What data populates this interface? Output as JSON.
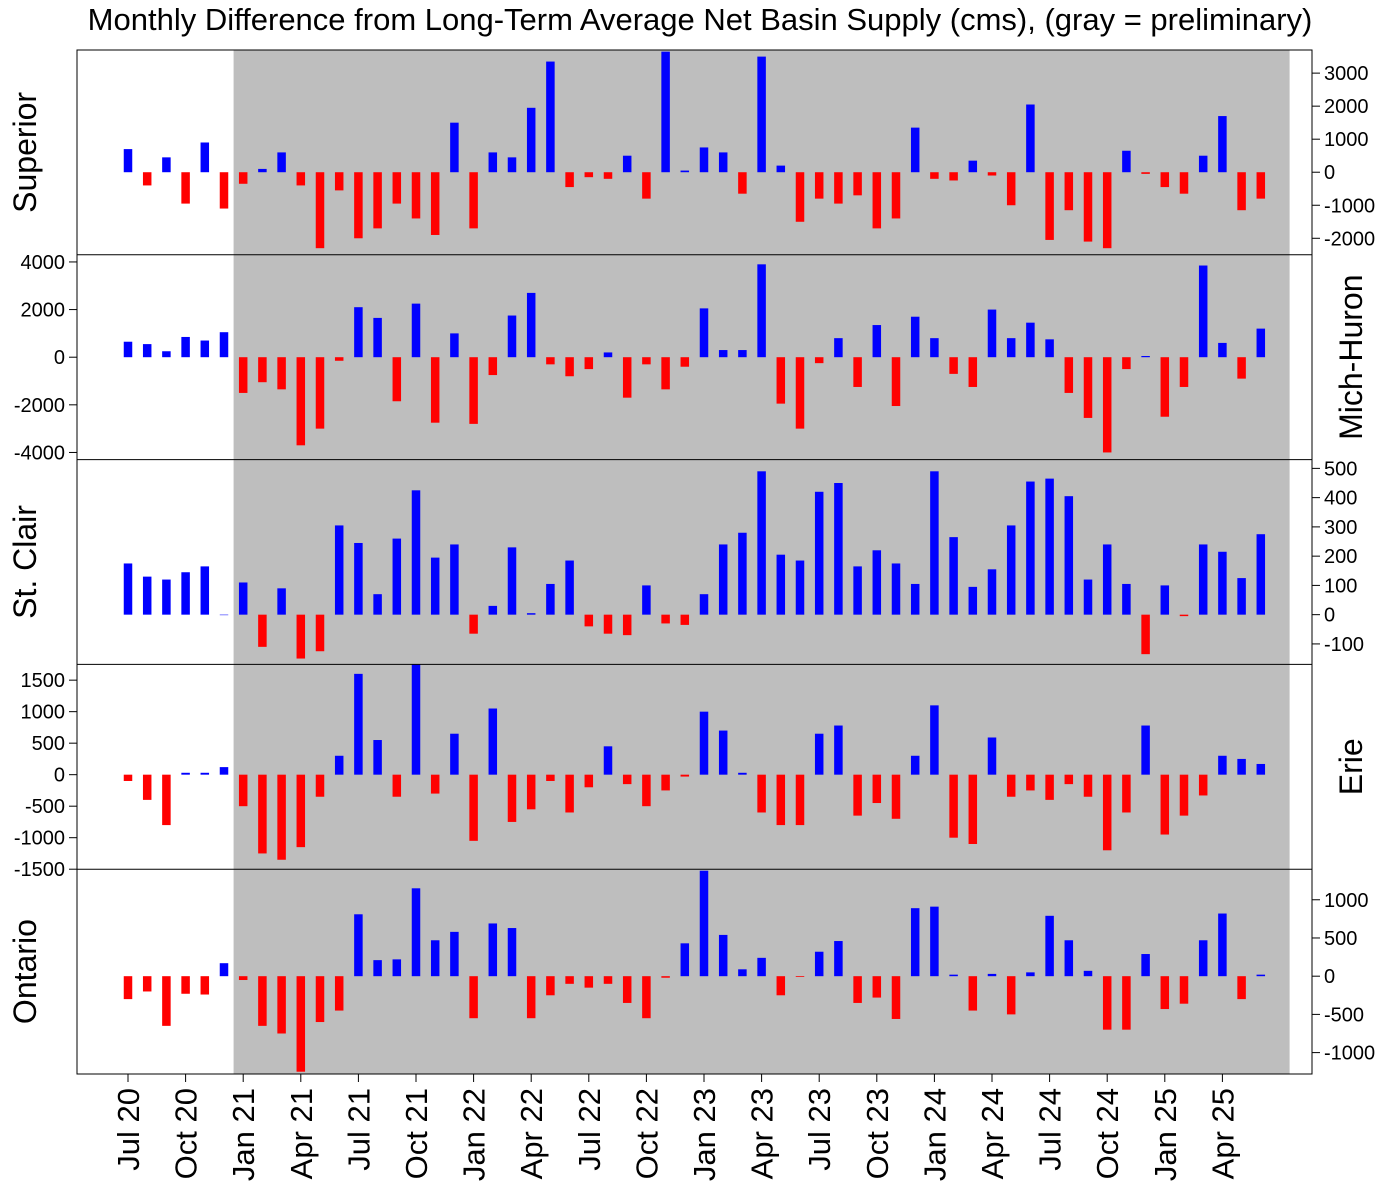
{
  "title": "Monthly Difference from Long-Term Average Net Basin Supply (cms), (gray = preliminary)",
  "chart_data": {
    "type": "bar",
    "x_start": "Jul 20",
    "months": 60,
    "x_ticks": [
      "Jul 20",
      "Oct 20",
      "Jan 21",
      "Apr 21",
      "Jul 21",
      "Oct 21",
      "Jan 22",
      "Apr 22",
      "Jul 22",
      "Oct 22",
      "Jan 23",
      "Apr 23",
      "Jul 23",
      "Oct 23",
      "Jan 24",
      "Apr 24",
      "Jul 24",
      "Oct 24",
      "Jan 25",
      "Apr 25"
    ],
    "preliminary_start": "Jan 21",
    "preliminary_end": "Jul 25",
    "preliminary_color": "#bebebe",
    "positive_color": "#0000ff",
    "negative_color": "#ff0000",
    "panels": [
      {
        "name": "Superior",
        "label_side": "left",
        "axis_side": "right",
        "ylim": [
          -2500,
          3700
        ],
        "ticks": [
          -2000,
          -1000,
          0,
          1000,
          2000,
          3000
        ],
        "values": [
          700,
          -400,
          450,
          -950,
          900,
          -1100,
          -350,
          100,
          600,
          -400,
          -2300,
          -550,
          -2000,
          -1700,
          -950,
          -1400,
          -1900,
          1500,
          -1700,
          600,
          450,
          1950,
          3350,
          -450,
          -150,
          -200,
          500,
          -800,
          3650,
          50,
          750,
          600,
          -650,
          3500,
          200,
          -1500,
          -800,
          -950,
          -700,
          -1700,
          -1400,
          1350,
          -200,
          -250,
          350,
          -100,
          -1000,
          2050,
          -2050,
          -1150,
          -2100,
          -2300,
          650,
          -50,
          -450,
          -650,
          500,
          1700,
          -1150,
          -800
        ]
      },
      {
        "name": "Mich-Huron",
        "label_side": "right",
        "axis_side": "left",
        "ylim": [
          -4300,
          4300
        ],
        "ticks": [
          -4000,
          -2000,
          0,
          2000,
          4000
        ],
        "values": [
          650,
          550,
          250,
          850,
          700,
          1050,
          -1500,
          -1050,
          -1350,
          -3700,
          -3000,
          -150,
          2100,
          1650,
          -1850,
          2250,
          -2750,
          1000,
          -2800,
          -750,
          1750,
          2700,
          -300,
          -800,
          -500,
          200,
          -1700,
          -300,
          -1350,
          -400,
          2050,
          300,
          300,
          3900,
          -1950,
          -3000,
          -250,
          800,
          -1250,
          1350,
          -2050,
          1700,
          800,
          -700,
          -1250,
          2000,
          800,
          1450,
          750,
          -1500,
          -2550,
          -4000,
          -500,
          50,
          -2500,
          -1250,
          3850,
          600,
          -900,
          1200
        ]
      },
      {
        "name": "St. Clair",
        "label_side": "left",
        "axis_side": "right",
        "ylim": [
          -170,
          530
        ],
        "ticks": [
          -100,
          0,
          100,
          200,
          300,
          400,
          500
        ],
        "values": [
          175,
          130,
          120,
          145,
          165,
          0,
          110,
          -110,
          90,
          -150,
          -125,
          305,
          245,
          70,
          260,
          425,
          195,
          240,
          -65,
          30,
          230,
          5,
          105,
          185,
          -40,
          -65,
          -70,
          100,
          -30,
          -35,
          70,
          240,
          280,
          490,
          205,
          185,
          420,
          450,
          165,
          220,
          175,
          105,
          490,
          265,
          95,
          155,
          305,
          455,
          465,
          405,
          120,
          240,
          105,
          -135,
          100,
          -5,
          240,
          215,
          125,
          275
        ]
      },
      {
        "name": "Erie",
        "label_side": "right",
        "axis_side": "left",
        "ylim": [
          -1500,
          1750
        ],
        "ticks": [
          -1500,
          -1000,
          -500,
          0,
          500,
          1000,
          1500
        ],
        "values": [
          -100,
          -400,
          -800,
          30,
          30,
          120,
          -500,
          -1250,
          -1350,
          -1150,
          -350,
          300,
          1600,
          550,
          -350,
          1750,
          -300,
          650,
          -1050,
          1050,
          -750,
          -550,
          -100,
          -600,
          -200,
          450,
          -150,
          -500,
          -250,
          -30,
          1000,
          700,
          30,
          -600,
          -800,
          -800,
          650,
          780,
          -650,
          -450,
          -700,
          300,
          1100,
          -1000,
          -1100,
          590,
          -350,
          -250,
          -400,
          -150,
          -350,
          -1200,
          -600,
          780,
          -950,
          -650,
          -330,
          300,
          250,
          170
        ]
      },
      {
        "name": "Ontario",
        "label_side": "left",
        "axis_side": "right",
        "ylim": [
          -1280,
          1400
        ],
        "ticks": [
          -1000,
          -500,
          0,
          500,
          1000
        ],
        "values": [
          -300,
          -200,
          -650,
          -230,
          -240,
          170,
          -50,
          -650,
          -750,
          -1250,
          -600,
          -450,
          810,
          210,
          220,
          1150,
          470,
          580,
          -550,
          690,
          630,
          -550,
          -250,
          -100,
          -150,
          -100,
          -350,
          -550,
          -20,
          430,
          1380,
          540,
          90,
          240,
          -250,
          -10,
          320,
          460,
          -350,
          -280,
          -560,
          890,
          910,
          20,
          -450,
          30,
          -500,
          50,
          790,
          470,
          70,
          -700,
          -700,
          290,
          -430,
          -360,
          470,
          820,
          -300,
          20
        ]
      }
    ]
  }
}
